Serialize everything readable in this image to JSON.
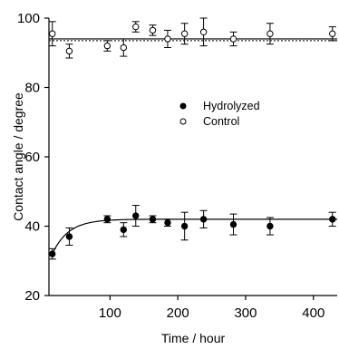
{
  "chart_data": {
    "type": "scatter",
    "title": "",
    "xlabel": "Time / hour",
    "ylabel": "Contact angle / degree",
    "xlim": [
      10,
      435
    ],
    "ylim": [
      20,
      100
    ],
    "x_ticks": [
      100,
      200,
      300,
      400
    ],
    "y_ticks": [
      20,
      40,
      60,
      80,
      100
    ],
    "legend_position": "center",
    "series": [
      {
        "name": "Hydrolyzed",
        "marker": "filled-circle",
        "color": "#000000",
        "points": [
          {
            "x": 15,
            "y": 32,
            "err": 1.5
          },
          {
            "x": 40,
            "y": 37,
            "err": 2.5
          },
          {
            "x": 96,
            "y": 42,
            "err": 1.0
          },
          {
            "x": 120,
            "y": 39,
            "err": 2.0
          },
          {
            "x": 138,
            "y": 43,
            "err": 3.0
          },
          {
            "x": 163,
            "y": 42,
            "err": 1.0
          },
          {
            "x": 185,
            "y": 41,
            "err": 1.0
          },
          {
            "x": 210,
            "y": 40,
            "err": 4.0
          },
          {
            "x": 238,
            "y": 42,
            "err": 2.5
          },
          {
            "x": 282,
            "y": 40.5,
            "err": 3.0
          },
          {
            "x": 336,
            "y": 40,
            "err": 2.5
          },
          {
            "x": 428,
            "y": 42,
            "err": 2.0
          }
        ]
      },
      {
        "name": "Control",
        "marker": "open-circle",
        "color": "#000000",
        "points": [
          {
            "x": 15,
            "y": 95.5,
            "err": 3.5
          },
          {
            "x": 40,
            "y": 90.5,
            "err": 2.0
          },
          {
            "x": 96,
            "y": 92,
            "err": 1.5
          },
          {
            "x": 120,
            "y": 91.5,
            "err": 2.5
          },
          {
            "x": 138,
            "y": 97.5,
            "err": 1.5
          },
          {
            "x": 163,
            "y": 96.5,
            "err": 1.5
          },
          {
            "x": 185,
            "y": 94,
            "err": 2.5
          },
          {
            "x": 210,
            "y": 95.5,
            "err": 3.0
          },
          {
            "x": 238,
            "y": 96,
            "err": 4.0
          },
          {
            "x": 282,
            "y": 94,
            "err": 2.0
          },
          {
            "x": 336,
            "y": 95.5,
            "err": 3.0
          },
          {
            "x": 428,
            "y": 95.5,
            "err": 2.0
          }
        ]
      }
    ],
    "fit_curve": {
      "a": 42,
      "b": 10,
      "k": 0.042,
      "x0": 15,
      "style": "solid"
    },
    "reference_lines": [
      {
        "y": 93.5,
        "style": "dashed"
      },
      {
        "y": 94,
        "style": "solid"
      }
    ]
  }
}
